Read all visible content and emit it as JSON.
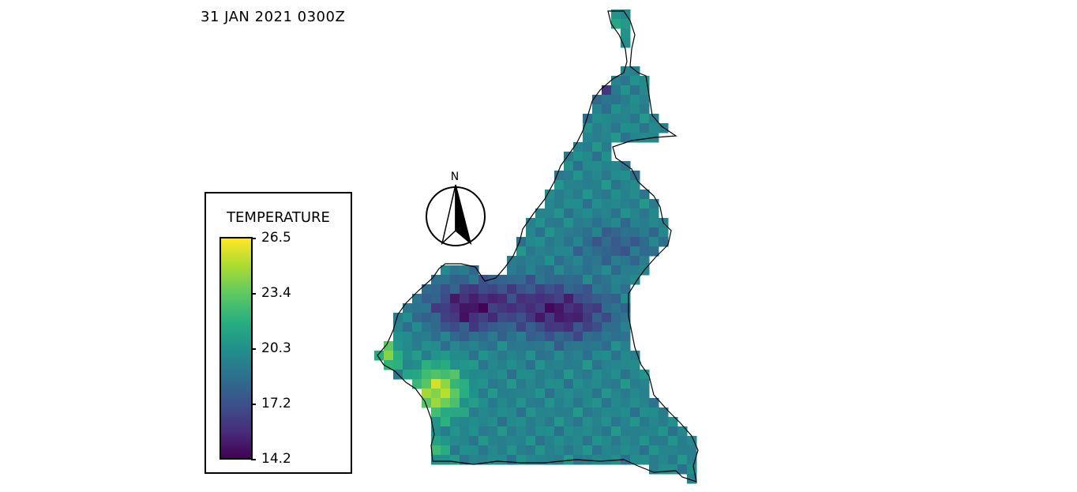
{
  "timestamp": "31 JAN 2021 0300Z",
  "legend": {
    "title": "TEMPERATURE",
    "ticks": [
      "26.5",
      "23.4",
      "20.3",
      "17.2",
      "14.2"
    ],
    "min": 14.2,
    "max": 26.5
  },
  "compass": {
    "label": "N"
  },
  "colormap": "viridis"
}
